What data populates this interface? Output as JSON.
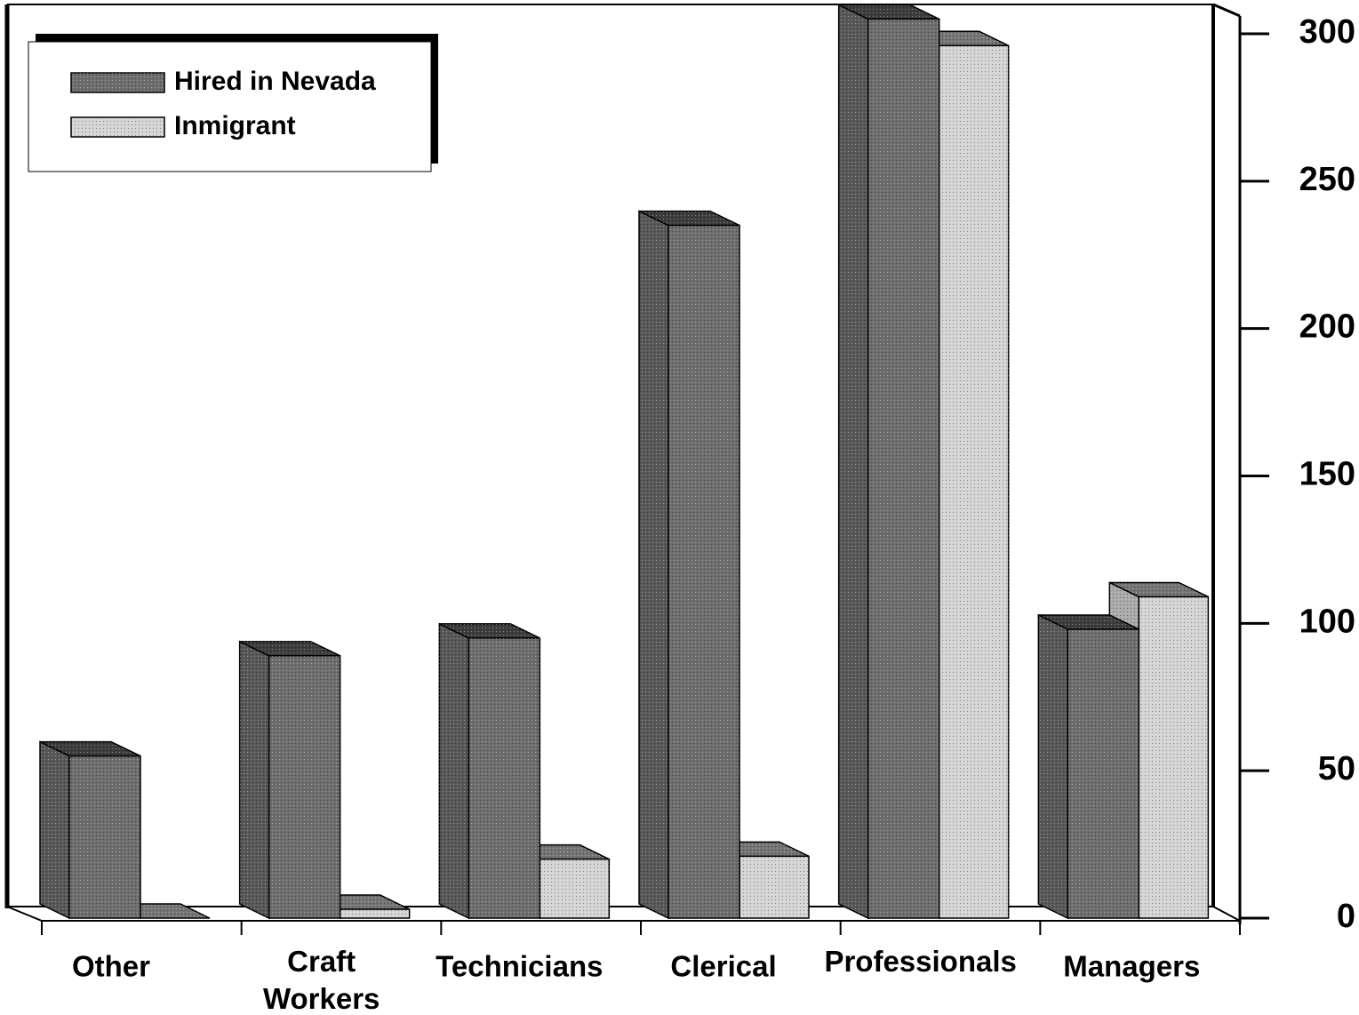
{
  "chart_data": {
    "type": "bar3d",
    "categories": [
      "Other",
      "Craft Workers",
      "Technicians",
      "Clerical",
      "Professionals",
      "Managers"
    ],
    "series": [
      {
        "name": "Hired in Nevada",
        "color": "#6e6e6e",
        "values": [
          55,
          89,
          95,
          235,
          305,
          98
        ]
      },
      {
        "name": "Inmigrant",
        "color": "#d4d4d4",
        "values": [
          0,
          3,
          20,
          21,
          296,
          109
        ]
      }
    ],
    "ylim": [
      0,
      300
    ],
    "yticks": [
      0,
      50,
      100,
      150,
      200,
      250,
      300
    ],
    "legend": "upper left"
  }
}
